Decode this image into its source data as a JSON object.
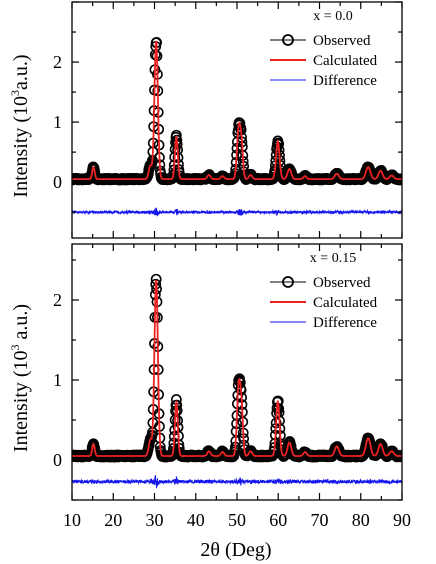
{
  "chart_data": [
    {
      "type": "line",
      "panel_label": "x = 0.0",
      "ylabel": "Intensity (10³a.u.)",
      "ylabel_main": "Intensity (10",
      "ylabel_sup": "3",
      "ylabel_tail": "a.u.)",
      "xlim": [
        10,
        90
      ],
      "ylim": [
        -0.93,
        3.0
      ],
      "yticks": [
        0,
        1,
        2
      ],
      "ytick_labels": [
        "0",
        "1",
        "2"
      ],
      "legend": [
        {
          "label": "Observed",
          "marker": "open-circle",
          "color": "#000000"
        },
        {
          "label": "Calculated",
          "color": "#ee2222"
        },
        {
          "label": "Difference",
          "color": "#1515ee"
        }
      ],
      "background": 0.05,
      "difference_offset": -0.5,
      "peaks": [
        {
          "x": 15.2,
          "y": 0.2,
          "w": 0.3
        },
        {
          "x": 29.0,
          "y": 0.22,
          "w": 0.4
        },
        {
          "x": 30.4,
          "y": 2.3,
          "w": 0.42
        },
        {
          "x": 35.3,
          "y": 0.7,
          "w": 0.35
        },
        {
          "x": 43.2,
          "y": 0.07,
          "w": 0.4
        },
        {
          "x": 46.5,
          "y": 0.05,
          "w": 0.4
        },
        {
          "x": 50.4,
          "y": 0.83,
          "w": 0.4
        },
        {
          "x": 51.1,
          "y": 0.55,
          "w": 0.35
        },
        {
          "x": 53.3,
          "y": 0.07,
          "w": 0.4
        },
        {
          "x": 59.9,
          "y": 0.63,
          "w": 0.42
        },
        {
          "x": 62.7,
          "y": 0.17,
          "w": 0.45
        },
        {
          "x": 66.5,
          "y": 0.05,
          "w": 0.4
        },
        {
          "x": 74.2,
          "y": 0.09,
          "w": 0.5
        },
        {
          "x": 81.8,
          "y": 0.2,
          "w": 0.55
        },
        {
          "x": 84.8,
          "y": 0.14,
          "w": 0.5
        },
        {
          "x": 87.5,
          "y": 0.06,
          "w": 0.5
        }
      ]
    },
    {
      "type": "line",
      "panel_label": "x = 0.15",
      "ylabel": "Intensity (10³ a.u.)",
      "ylabel_main": "Intensity (10",
      "ylabel_sup": "3",
      "ylabel_tail": " a.u.)",
      "xlabel": "2θ (Deg)",
      "xlim": [
        10,
        90
      ],
      "xticks": [
        10,
        20,
        30,
        40,
        50,
        60,
        70,
        80,
        90
      ],
      "xtick_labels": [
        "10",
        "20",
        "30",
        "40",
        "50",
        "60",
        "70",
        "80",
        "90"
      ],
      "ylim": [
        -0.5,
        2.7
      ],
      "yticks": [
        0,
        1,
        2
      ],
      "ytick_labels": [
        "0",
        "1",
        "2"
      ],
      "legend": [
        {
          "label": "Observed",
          "marker": "open-circle",
          "color": "#000000"
        },
        {
          "label": "Calculated",
          "color": "#ee2222"
        },
        {
          "label": "Difference",
          "color": "#1515ee"
        }
      ],
      "background": 0.05,
      "difference_offset": -0.27,
      "peaks": [
        {
          "x": 15.2,
          "y": 0.15,
          "w": 0.3
        },
        {
          "x": 29.0,
          "y": 0.2,
          "w": 0.4
        },
        {
          "x": 30.4,
          "y": 2.2,
          "w": 0.42
        },
        {
          "x": 35.3,
          "y": 0.67,
          "w": 0.35
        },
        {
          "x": 43.2,
          "y": 0.06,
          "w": 0.4
        },
        {
          "x": 46.5,
          "y": 0.05,
          "w": 0.4
        },
        {
          "x": 50.4,
          "y": 0.86,
          "w": 0.4
        },
        {
          "x": 51.1,
          "y": 0.55,
          "w": 0.35
        },
        {
          "x": 53.3,
          "y": 0.06,
          "w": 0.4
        },
        {
          "x": 59.9,
          "y": 0.68,
          "w": 0.42
        },
        {
          "x": 62.7,
          "y": 0.17,
          "w": 0.45
        },
        {
          "x": 66.5,
          "y": 0.05,
          "w": 0.4
        },
        {
          "x": 74.2,
          "y": 0.12,
          "w": 0.5
        },
        {
          "x": 81.8,
          "y": 0.22,
          "w": 0.55
        },
        {
          "x": 84.8,
          "y": 0.15,
          "w": 0.5
        },
        {
          "x": 87.5,
          "y": 0.06,
          "w": 0.5
        }
      ]
    }
  ]
}
